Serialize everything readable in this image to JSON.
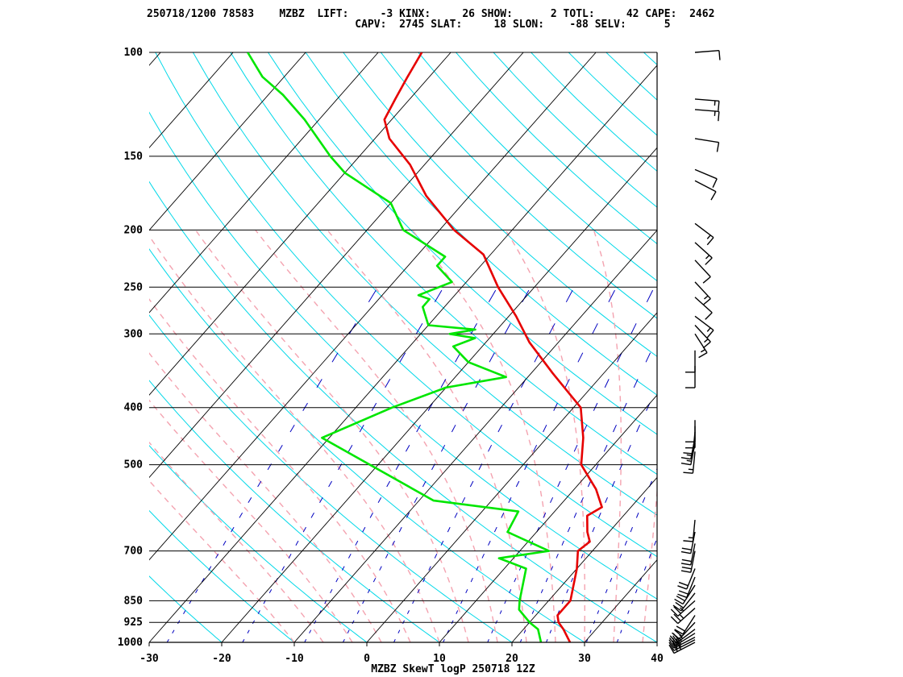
{
  "header": {
    "line1": [
      {
        "label": "250718/1200",
        "value": "78583"
      },
      {
        "label": "MZBZ",
        "value": ""
      },
      {
        "label": "LIFT:",
        "value": "-3"
      },
      {
        "label": "KINX:",
        "value": "26"
      },
      {
        "label": "SHOW:",
        "value": "2"
      },
      {
        "label": "TOTL:",
        "value": "42"
      },
      {
        "label": "CAPE:",
        "value": "2462"
      }
    ],
    "line2": [
      {
        "label": "CAPV:",
        "value": "2745"
      },
      {
        "label": "SLAT:",
        "value": "18"
      },
      {
        "label": "SLON:",
        "value": "-88"
      },
      {
        "label": "SELV:",
        "value": "5"
      }
    ],
    "line1_text": "250718/1200 78583    MZBZ  LIFT:     -3 KINX:     26 SHOW:      2 TOTL:     42 CAPE:  2462",
    "line2_text": "                                 CAPV:  2745 SLAT:     18 SLON:    -88 SELV:      5"
  },
  "footer_title": "MZBZ SkewT logP 250718 12Z",
  "colors": {
    "temperature": "#e60000",
    "dewpoint": "#00e600",
    "isotherm": "#000000",
    "isobar": "#000000",
    "dry_adiabat": "#00d8e8",
    "moist_adiabat": "#f4a3b0",
    "mixing_ratio": "#0000c0",
    "wind_barb": "#000000"
  },
  "chart_data": {
    "type": "line",
    "title": "MZBZ SkewT logP 250718 12Z",
    "xlabel": "",
    "ylabel": "",
    "x_ticks": [
      -30,
      -20,
      -10,
      0,
      10,
      20,
      30,
      40
    ],
    "y_ticks": [
      100,
      150,
      200,
      250,
      300,
      400,
      500,
      700,
      850,
      925,
      1000
    ],
    "xlim": [
      -30,
      40
    ],
    "ylim": [
      1000,
      100
    ],
    "y_scale": "log",
    "series": [
      {
        "name": "temperature",
        "points": [
          [
            28,
            1000
          ],
          [
            25.5,
            950
          ],
          [
            24,
            925
          ],
          [
            23,
            900
          ],
          [
            23,
            850
          ],
          [
            20,
            750
          ],
          [
            18,
            700
          ],
          [
            18.5,
            675
          ],
          [
            17,
            650
          ],
          [
            15,
            610
          ],
          [
            16,
            590
          ],
          [
            13,
            550
          ],
          [
            8,
            500
          ],
          [
            5,
            450
          ],
          [
            1,
            400
          ],
          [
            -7,
            350
          ],
          [
            -14,
            310
          ],
          [
            -19,
            280
          ],
          [
            -25,
            250
          ],
          [
            -31,
            220
          ],
          [
            -38,
            200
          ],
          [
            -46,
            175
          ],
          [
            -52,
            155
          ],
          [
            -58,
            140
          ],
          [
            -61,
            130
          ],
          [
            -62,
            120
          ],
          [
            -63,
            110
          ],
          [
            -64,
            100
          ]
        ]
      },
      {
        "name": "dewpoint",
        "points": [
          [
            24,
            1000
          ],
          [
            22,
            950
          ],
          [
            20,
            925
          ],
          [
            17,
            880
          ],
          [
            16,
            850
          ],
          [
            13,
            750
          ],
          [
            8,
            720
          ],
          [
            14,
            700
          ],
          [
            6,
            650
          ],
          [
            5,
            600
          ],
          [
            -8,
            575
          ],
          [
            -31,
            450
          ],
          [
            -25,
            400
          ],
          [
            -20,
            370
          ],
          [
            -13,
            355
          ],
          [
            -20,
            335
          ],
          [
            -24,
            315
          ],
          [
            -22,
            305
          ],
          [
            -26,
            300
          ],
          [
            -23,
            295
          ],
          [
            -30,
            290
          ],
          [
            -33,
            270
          ],
          [
            -33,
            262
          ],
          [
            -35,
            258
          ],
          [
            -32,
            245
          ],
          [
            -36,
            230
          ],
          [
            -36,
            222
          ],
          [
            -45,
            200
          ],
          [
            -50,
            180
          ],
          [
            -60,
            160
          ],
          [
            -64,
            150
          ],
          [
            -72,
            130
          ],
          [
            -78,
            118
          ],
          [
            -83,
            110
          ],
          [
            -88,
            100
          ]
        ]
      }
    ],
    "wind_barbs": [
      {
        "p": 1000,
        "speed": 30,
        "dir": 240
      },
      {
        "p": 990,
        "speed": 30,
        "dir": 240
      },
      {
        "p": 980,
        "speed": 30,
        "dir": 240
      },
      {
        "p": 965,
        "speed": 25,
        "dir": 235
      },
      {
        "p": 950,
        "speed": 25,
        "dir": 230
      },
      {
        "p": 925,
        "speed": 20,
        "dir": 220
      },
      {
        "p": 900,
        "speed": 20,
        "dir": 210
      },
      {
        "p": 875,
        "speed": 25,
        "dir": 225
      },
      {
        "p": 850,
        "speed": 25,
        "dir": 225
      },
      {
        "p": 825,
        "speed": 20,
        "dir": 215
      },
      {
        "p": 800,
        "speed": 20,
        "dir": 210
      },
      {
        "p": 775,
        "speed": 20,
        "dir": 200
      },
      {
        "p": 750,
        "speed": 20,
        "dir": 200
      },
      {
        "p": 700,
        "speed": 20,
        "dir": 190
      },
      {
        "p": 680,
        "speed": 20,
        "dir": 190
      },
      {
        "p": 650,
        "speed": 20,
        "dir": 190
      },
      {
        "p": 620,
        "speed": 15,
        "dir": 185
      },
      {
        "p": 475,
        "speed": 15,
        "dir": 185
      },
      {
        "p": 460,
        "speed": 15,
        "dir": 190
      },
      {
        "p": 450,
        "speed": 15,
        "dir": 190
      },
      {
        "p": 440,
        "speed": 10,
        "dir": 185
      },
      {
        "p": 430,
        "speed": 10,
        "dir": 180
      },
      {
        "p": 420,
        "speed": 10,
        "dir": 180
      },
      {
        "p": 340,
        "speed": 10,
        "dir": 180
      },
      {
        "p": 320,
        "speed": 10,
        "dir": 180
      },
      {
        "p": 300,
        "speed": 15,
        "dir": 150
      },
      {
        "p": 290,
        "speed": 15,
        "dir": 140
      },
      {
        "p": 280,
        "speed": 15,
        "dir": 130
      },
      {
        "p": 260,
        "speed": 10,
        "dir": 135
      },
      {
        "p": 245,
        "speed": 15,
        "dir": 140
      },
      {
        "p": 225,
        "speed": 10,
        "dir": 140
      },
      {
        "p": 210,
        "speed": 15,
        "dir": 135
      },
      {
        "p": 195,
        "speed": 15,
        "dir": 130
      },
      {
        "p": 165,
        "speed": 10,
        "dir": 120
      },
      {
        "p": 158,
        "speed": 10,
        "dir": 115
      },
      {
        "p": 140,
        "speed": 10,
        "dir": 100
      },
      {
        "p": 125,
        "speed": 15,
        "dir": 95
      },
      {
        "p": 120,
        "speed": 15,
        "dir": 95
      },
      {
        "p": 100,
        "speed": 10,
        "dir": 85
      }
    ]
  }
}
